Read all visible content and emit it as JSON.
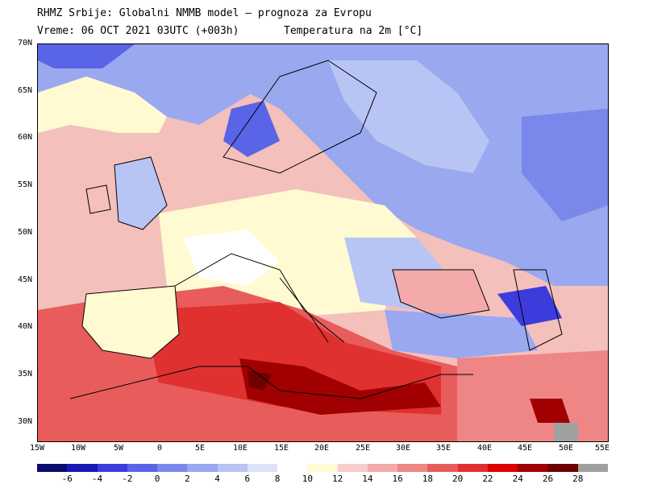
{
  "header": {
    "title_line1": "RHMZ Srbije: Globalni NMMB model — prognoza za Evropu",
    "title_line2": "Vreme: 06 OCT 2021 03UTC (+003h)",
    "title_line3": "Temperatura na 2m [°C]"
  },
  "axes": {
    "lat_labels": [
      "70N",
      "65N",
      "60N",
      "55N",
      "50N",
      "45N",
      "40N",
      "35N",
      "30N"
    ],
    "lon_labels": [
      "15W",
      "10W",
      "5W",
      "0",
      "5E",
      "10E",
      "15E",
      "20E",
      "25E",
      "30E",
      "35E",
      "40E",
      "45E",
      "50E",
      "55E"
    ]
  },
  "legend": {
    "labels": [
      "-6",
      "-4",
      "-2",
      "0",
      "2",
      "4",
      "6",
      "8",
      "10",
      "12",
      "14",
      "16",
      "18",
      "20",
      "22",
      "24",
      "26",
      "28"
    ],
    "colors": [
      "#0b0b6e",
      "#1919b4",
      "#3c3cdc",
      "#5a64e6",
      "#7a88ec",
      "#9aa8f0",
      "#b8c4f4",
      "#dce2f8",
      "#ffffff",
      "#fffad2",
      "#f8cccc",
      "#f4aaaa",
      "#ee8686",
      "#e85c5c",
      "#e03030",
      "#dc0000",
      "#a00000",
      "#6e0000",
      "#a0a0a0"
    ]
  },
  "map": {
    "region": "Europe",
    "lon_range": [
      -15,
      55
    ],
    "lat_range": [
      28,
      70
    ],
    "variable": "2m temperature"
  }
}
